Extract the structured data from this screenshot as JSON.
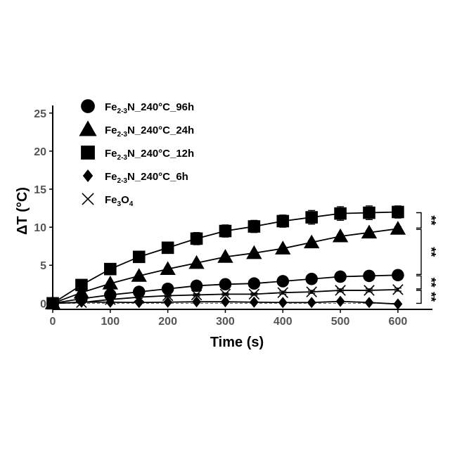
{
  "chart_data": {
    "type": "line",
    "title": "",
    "xlabel": "Time (s)",
    "ylabel": "ΔT (°C)",
    "xlim": [
      0,
      660
    ],
    "ylim": [
      -0.8,
      26
    ],
    "x": [
      0,
      50,
      100,
      150,
      200,
      250,
      300,
      350,
      400,
      450,
      500,
      550,
      600
    ],
    "xticks": [
      0,
      100,
      200,
      300,
      400,
      500,
      600
    ],
    "yticks": [
      0,
      5,
      10,
      15,
      20,
      25
    ],
    "legend_position": "top-left",
    "series": [
      {
        "name": "Fe2-3N_240°C_96h",
        "name_parts": [
          "Fe",
          "2-3",
          "N_240°C_96h"
        ],
        "marker": "circle",
        "values": [
          0,
          0.6,
          1.1,
          1.5,
          1.9,
          2.3,
          2.5,
          2.6,
          2.9,
          3.2,
          3.5,
          3.6,
          3.7
        ],
        "errors": [
          0,
          0.15,
          0.2,
          0.2,
          0.25,
          0.2,
          0.2,
          0.2,
          0.25,
          0.3,
          0.35,
          0.4,
          0.45
        ]
      },
      {
        "name": "Fe2-3N_240°C_24h",
        "name_parts": [
          "Fe",
          "2-3",
          "N_240°C_24h"
        ],
        "marker": "triangle",
        "values": [
          0,
          1.4,
          2.6,
          3.6,
          4.5,
          5.3,
          6.1,
          6.6,
          7.2,
          8.0,
          8.8,
          9.3,
          9.8
        ],
        "errors": [
          0,
          0.1,
          0.15,
          0.15,
          0.2,
          0.2,
          0.2,
          0.2,
          0.2,
          0.25,
          0.25,
          0.25,
          0.25
        ]
      },
      {
        "name": "Fe2-3N_240°C_12h",
        "name_parts": [
          "Fe",
          "2-3",
          "N_240°C_12h"
        ],
        "marker": "square",
        "values": [
          0,
          2.4,
          4.5,
          6.1,
          7.3,
          8.5,
          9.5,
          10.1,
          10.8,
          11.3,
          11.8,
          11.9,
          12.0
        ],
        "errors": [
          0,
          0.3,
          0.5,
          0.6,
          0.7,
          0.8,
          0.8,
          0.8,
          0.8,
          0.9,
          0.9,
          0.9,
          0.8
        ]
      },
      {
        "name": "Fe2-3N_240°C_6h",
        "name_parts": [
          "Fe",
          "2-3",
          "N_240°C_6h"
        ],
        "marker": "diamond",
        "values": [
          0,
          0.15,
          0.15,
          0.1,
          0.15,
          0.2,
          0.2,
          0.15,
          0.1,
          0.1,
          0.25,
          0.1,
          -0.1
        ],
        "errors": [
          0,
          0.05,
          0.05,
          0.05,
          0.05,
          0.05,
          0.05,
          0.05,
          0.05,
          0.05,
          0.05,
          0.05,
          0.05
        ]
      },
      {
        "name": "Fe3O4",
        "name_parts": [
          "Fe",
          "3",
          "O",
          "4"
        ],
        "marker": "x",
        "values": [
          0,
          0.1,
          0.5,
          0.8,
          1.0,
          1.1,
          1.2,
          1.2,
          1.4,
          1.5,
          1.7,
          1.7,
          1.8
        ],
        "errors": [
          0,
          0.1,
          0.1,
          0.15,
          0.15,
          0.15,
          0.15,
          0.15,
          0.2,
          0.2,
          0.2,
          0.2,
          0.2
        ]
      }
    ],
    "baseline_dashed": 0,
    "significance": [
      {
        "label": "**",
        "between": [
          12.0,
          9.8
        ]
      },
      {
        "label": "**",
        "between": [
          9.8,
          3.7
        ]
      },
      {
        "label": "**",
        "between": [
          3.7,
          1.8
        ]
      },
      {
        "label": "**",
        "between": [
          1.8,
          -0.1
        ]
      }
    ],
    "colors": {
      "line": "#000000",
      "tick": "#555555",
      "marker": "#000000"
    }
  }
}
